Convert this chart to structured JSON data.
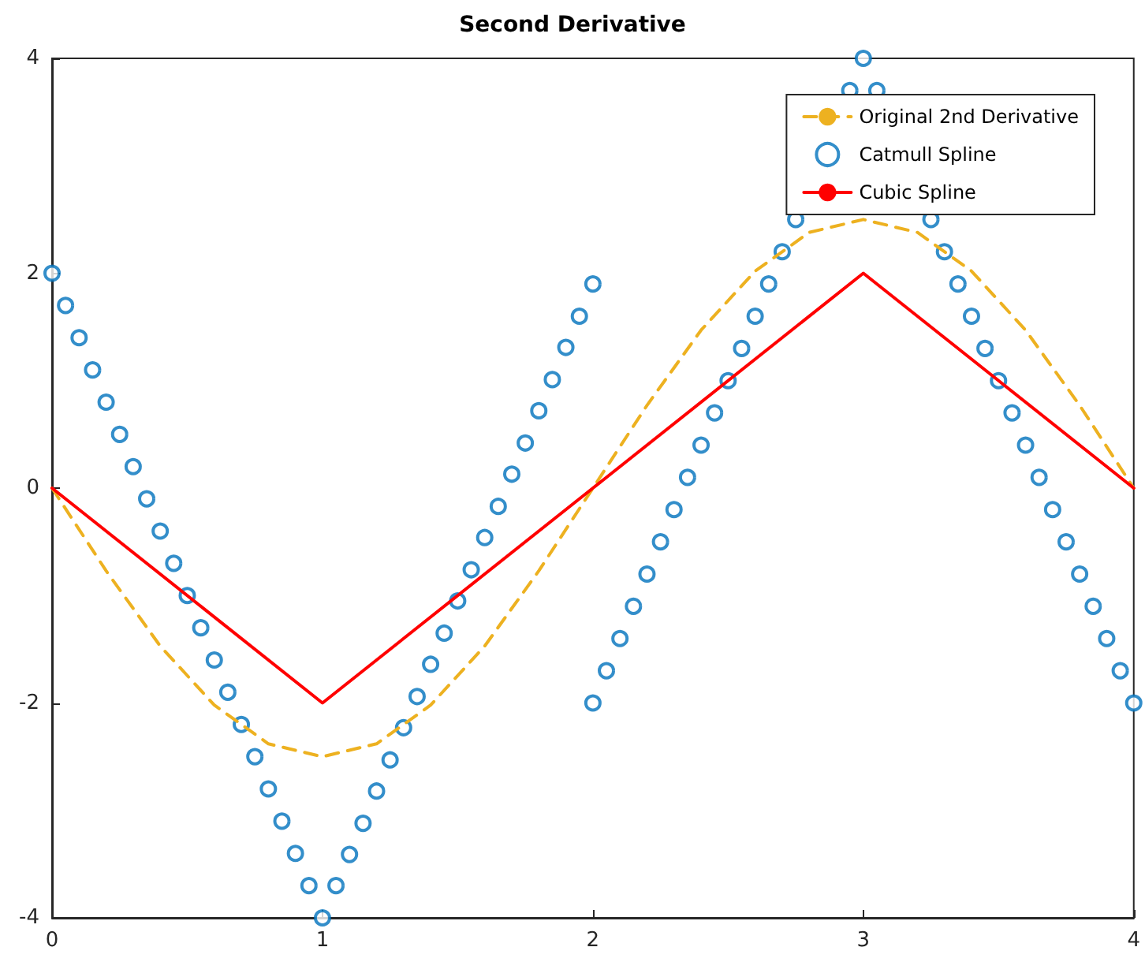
{
  "chart_data": {
    "type": "line",
    "title": "Second Derivative",
    "xlim": [
      0,
      4
    ],
    "xticks": [
      0,
      1,
      2,
      3,
      4
    ],
    "ylim": [
      -4,
      4
    ],
    "yticks": [
      -4,
      -2,
      0,
      2,
      4
    ],
    "grid": false,
    "legend": "top right",
    "series": [
      {
        "name": "Original 2nd Derivative",
        "type": "line",
        "color": "#edb120",
        "line_style": "dashed",
        "marker": "none",
        "x": [
          0,
          0.2,
          0.4,
          0.6,
          0.8,
          1,
          1.2,
          1.4,
          1.6,
          1.8,
          2,
          2.2,
          2.4,
          2.6,
          2.8,
          3,
          3.2,
          3.4,
          3.6,
          3.8,
          4
        ],
        "values": [
          0,
          -0.77,
          -1.47,
          -2.02,
          -2.38,
          -2.5,
          -2.38,
          -2.02,
          -1.47,
          -0.77,
          0,
          0.77,
          1.47,
          2.02,
          2.38,
          2.5,
          2.38,
          2.02,
          1.47,
          0.77,
          0
        ]
      },
      {
        "name": "Catmull Spline",
        "type": "scatter",
        "color": "#0072bd",
        "marker": "circle",
        "x": [
          0,
          0.05,
          0.1,
          0.15,
          0.2,
          0.25,
          0.3,
          0.35,
          0.4,
          0.45,
          0.5,
          0.55,
          0.6,
          0.65,
          0.7,
          0.75,
          0.8,
          0.85,
          0.9,
          0.95,
          1,
          1.05,
          1.1,
          1.15,
          1.2,
          1.25,
          1.3,
          1.35,
          1.4,
          1.45,
          1.5,
          1.55,
          1.6,
          1.65,
          1.7,
          1.75,
          1.8,
          1.85,
          1.9,
          1.95,
          2,
          2,
          2.05,
          2.1,
          2.15,
          2.2,
          2.25,
          2.3,
          2.35,
          2.4,
          2.45,
          2.5,
          2.55,
          2.6,
          2.65,
          2.7,
          2.75,
          2.8,
          2.85,
          2.9,
          2.95,
          3,
          3.05,
          3.1,
          3.15,
          3.2,
          3.25,
          3.3,
          3.35,
          3.4,
          3.45,
          3.5,
          3.55,
          3.6,
          3.65,
          3.7,
          3.75,
          3.8,
          3.85,
          3.9,
          3.95,
          4
        ],
        "values": [
          2,
          1.7,
          1.4,
          1.1,
          0.8,
          0.5,
          0.2,
          -0.1,
          -0.4,
          -0.7,
          -1,
          -1.3,
          -1.6,
          -1.9,
          -2.2,
          -2.5,
          -2.8,
          -3.1,
          -3.4,
          -3.7,
          -4,
          -3.7,
          -3.41,
          -3.12,
          -2.82,
          -2.53,
          -2.23,
          -1.94,
          -1.64,
          -1.35,
          -1.05,
          -0.76,
          -0.46,
          -0.17,
          0.13,
          0.42,
          0.72,
          1.01,
          1.31,
          1.6,
          1.9,
          -2,
          -1.7,
          -1.4,
          -1.1,
          -0.8,
          -0.5,
          -0.2,
          0.1,
          0.4,
          0.7,
          1,
          1.3,
          1.6,
          1.9,
          2.2,
          2.5,
          null,
          null,
          null,
          3.7,
          4,
          3.7,
          null,
          null,
          null,
          2.5,
          2.2,
          1.9,
          1.6,
          1.3,
          1,
          0.7,
          0.4,
          0.1,
          -0.2,
          -0.5,
          -0.8,
          -1.1,
          -1.4,
          -1.7,
          -2
        ]
      },
      {
        "name": "Cubic Spline",
        "type": "line",
        "color": "#ff0000",
        "line_style": "solid",
        "marker": "none",
        "x": [
          0,
          1,
          2,
          3,
          4
        ],
        "values": [
          0,
          -2,
          0,
          2,
          0
        ]
      }
    ]
  }
}
